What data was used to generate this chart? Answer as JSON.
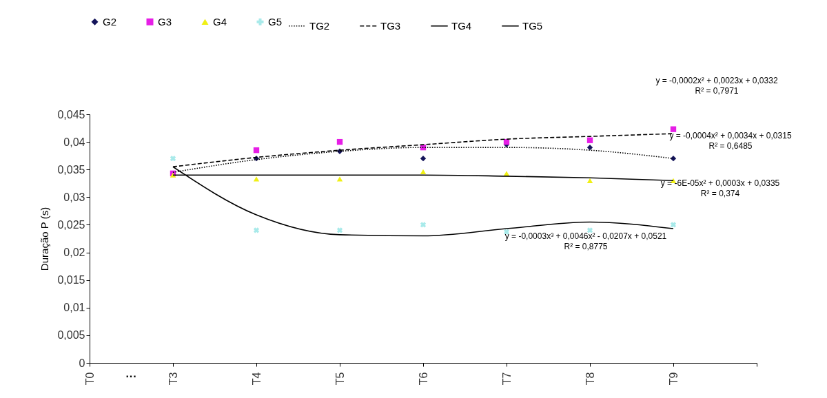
{
  "chart_data": {
    "type": "scatter",
    "ylabel": "Duração P (s)",
    "categories": [
      "T0",
      "T3",
      "T4",
      "T5",
      "T6",
      "T7",
      "T8",
      "T9",
      null
    ],
    "ylim": [
      0,
      0.045
    ],
    "yticks": [
      {
        "value": 0,
        "label": "0"
      },
      {
        "value": 0.005,
        "label": "0,005"
      },
      {
        "value": 0.01,
        "label": "0,01"
      },
      {
        "value": 0.015,
        "label": "0,015"
      },
      {
        "value": 0.02,
        "label": "0,02"
      },
      {
        "value": 0.025,
        "label": "0,025"
      },
      {
        "value": 0.03,
        "label": "0,03"
      },
      {
        "value": 0.035,
        "label": "0,035"
      },
      {
        "value": 0.04,
        "label": "0,04"
      },
      {
        "value": 0.045,
        "label": "0,045"
      }
    ],
    "grid": false,
    "legend": "top",
    "series": [
      {
        "name": "G2",
        "marker": "diamond",
        "color": "#14145a",
        "values": [
          null,
          null,
          0.037,
          0.0383,
          0.037,
          0.0395,
          0.039,
          0.037,
          null
        ]
      },
      {
        "name": "G3",
        "marker": "square",
        "color": "#e61ee6",
        "values": [
          null,
          0.0343,
          0.0385,
          0.04,
          0.039,
          0.04,
          0.0403,
          0.0423,
          null
        ]
      },
      {
        "name": "G4",
        "marker": "triangle",
        "color": "#f0f014",
        "values": [
          null,
          0.034,
          0.0333,
          0.0333,
          0.0346,
          0.0343,
          0.033,
          0.033,
          null
        ]
      },
      {
        "name": "G5",
        "marker": "cross",
        "color": "#a8eaea",
        "values": [
          null,
          0.037,
          0.024,
          0.024,
          0.025,
          0.0237,
          0.024,
          0.025,
          null
        ]
      },
      {
        "name": "TG2",
        "type": "line",
        "line_style": "dotted",
        "color": "#000000",
        "values": [
          null,
          0.0345,
          0.0368,
          0.0383,
          0.039,
          0.039,
          0.0385,
          0.037,
          null
        ]
      },
      {
        "name": "TG3",
        "type": "line",
        "line_style": "dashed",
        "color": "#000000",
        "values": [
          null,
          0.0355,
          0.0372,
          0.0385,
          0.0395,
          0.0405,
          0.041,
          0.0415,
          null
        ]
      },
      {
        "name": "TG4",
        "type": "line",
        "line_style": "solid",
        "color": "#000000",
        "values": [
          null,
          0.034,
          0.034,
          0.034,
          0.034,
          0.0338,
          0.0335,
          0.033,
          null
        ]
      },
      {
        "name": "TG5",
        "type": "line",
        "line_style": "solid",
        "color": "#000000",
        "values": [
          null,
          0.0355,
          0.0268,
          0.0232,
          0.023,
          0.0243,
          0.0255,
          0.0243,
          null
        ]
      }
    ],
    "annotations": [
      "y = -0,0002x² + 0,0023x + 0,0332\nR² = 0,7971",
      "y = -0,0004x² + 0,0034x + 0,0315\nR² = 0,6485",
      "y = -6E-05x² + 0,0003x + 0,0335\nR² = 0,374",
      "y = -0,0003x³ + 0,0046x² - 0,0207x + 0,0521\nR² = 0,8775",
      "···"
    ]
  }
}
